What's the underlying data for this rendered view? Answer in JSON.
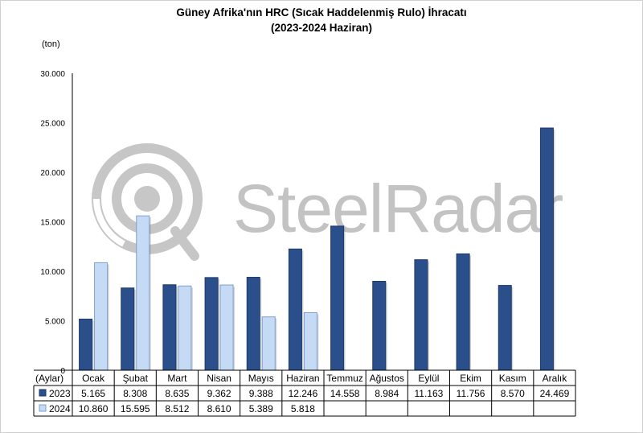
{
  "chart_data": {
    "type": "bar",
    "title": "Güney Afrika'nın HRC (Sıcak Haddelenmiş Rulo) İhracatı",
    "subtitle": "(2023-2024 Haziran)",
    "ylabel": "(ton)",
    "xlabel": "(Aylar)",
    "ylim": [
      0,
      30000
    ],
    "yticks": [
      "0",
      "5.000",
      "10.000",
      "15.000",
      "20.000",
      "25.000",
      "30.000"
    ],
    "ytick_values": [
      0,
      5000,
      10000,
      15000,
      20000,
      25000,
      30000
    ],
    "categories": [
      "Ocak",
      "Şubat",
      "Mart",
      "Nisan",
      "Mayıs",
      "Haziran",
      "Temmuz",
      "Ağustos",
      "Eylül",
      "Ekim",
      "Kasım",
      "Aralık"
    ],
    "series": [
      {
        "name": "2023",
        "color": "#2a4f8b",
        "values": [
          5165,
          8308,
          8635,
          9362,
          9388,
          12246,
          14558,
          8984,
          11163,
          11756,
          8570,
          24469
        ],
        "labels": [
          "5.165",
          "8.308",
          "8.635",
          "9.362",
          "9.388",
          "12.246",
          "14.558",
          "8.984",
          "11.163",
          "11.756",
          "8.570",
          "24.469"
        ]
      },
      {
        "name": "2024",
        "color": "#c5daf4",
        "values": [
          10860,
          15595,
          8512,
          8610,
          5389,
          5818,
          null,
          null,
          null,
          null,
          null,
          null
        ],
        "labels": [
          "10.860",
          "15.595",
          "8.512",
          "8.610",
          "5.389",
          "5.818",
          "",
          "",
          "",
          "",
          "",
          ""
        ]
      }
    ],
    "grid": false,
    "legend": "data-table"
  },
  "watermark": {
    "text": "SteelRadar",
    "color": "#b9b9b9"
  }
}
